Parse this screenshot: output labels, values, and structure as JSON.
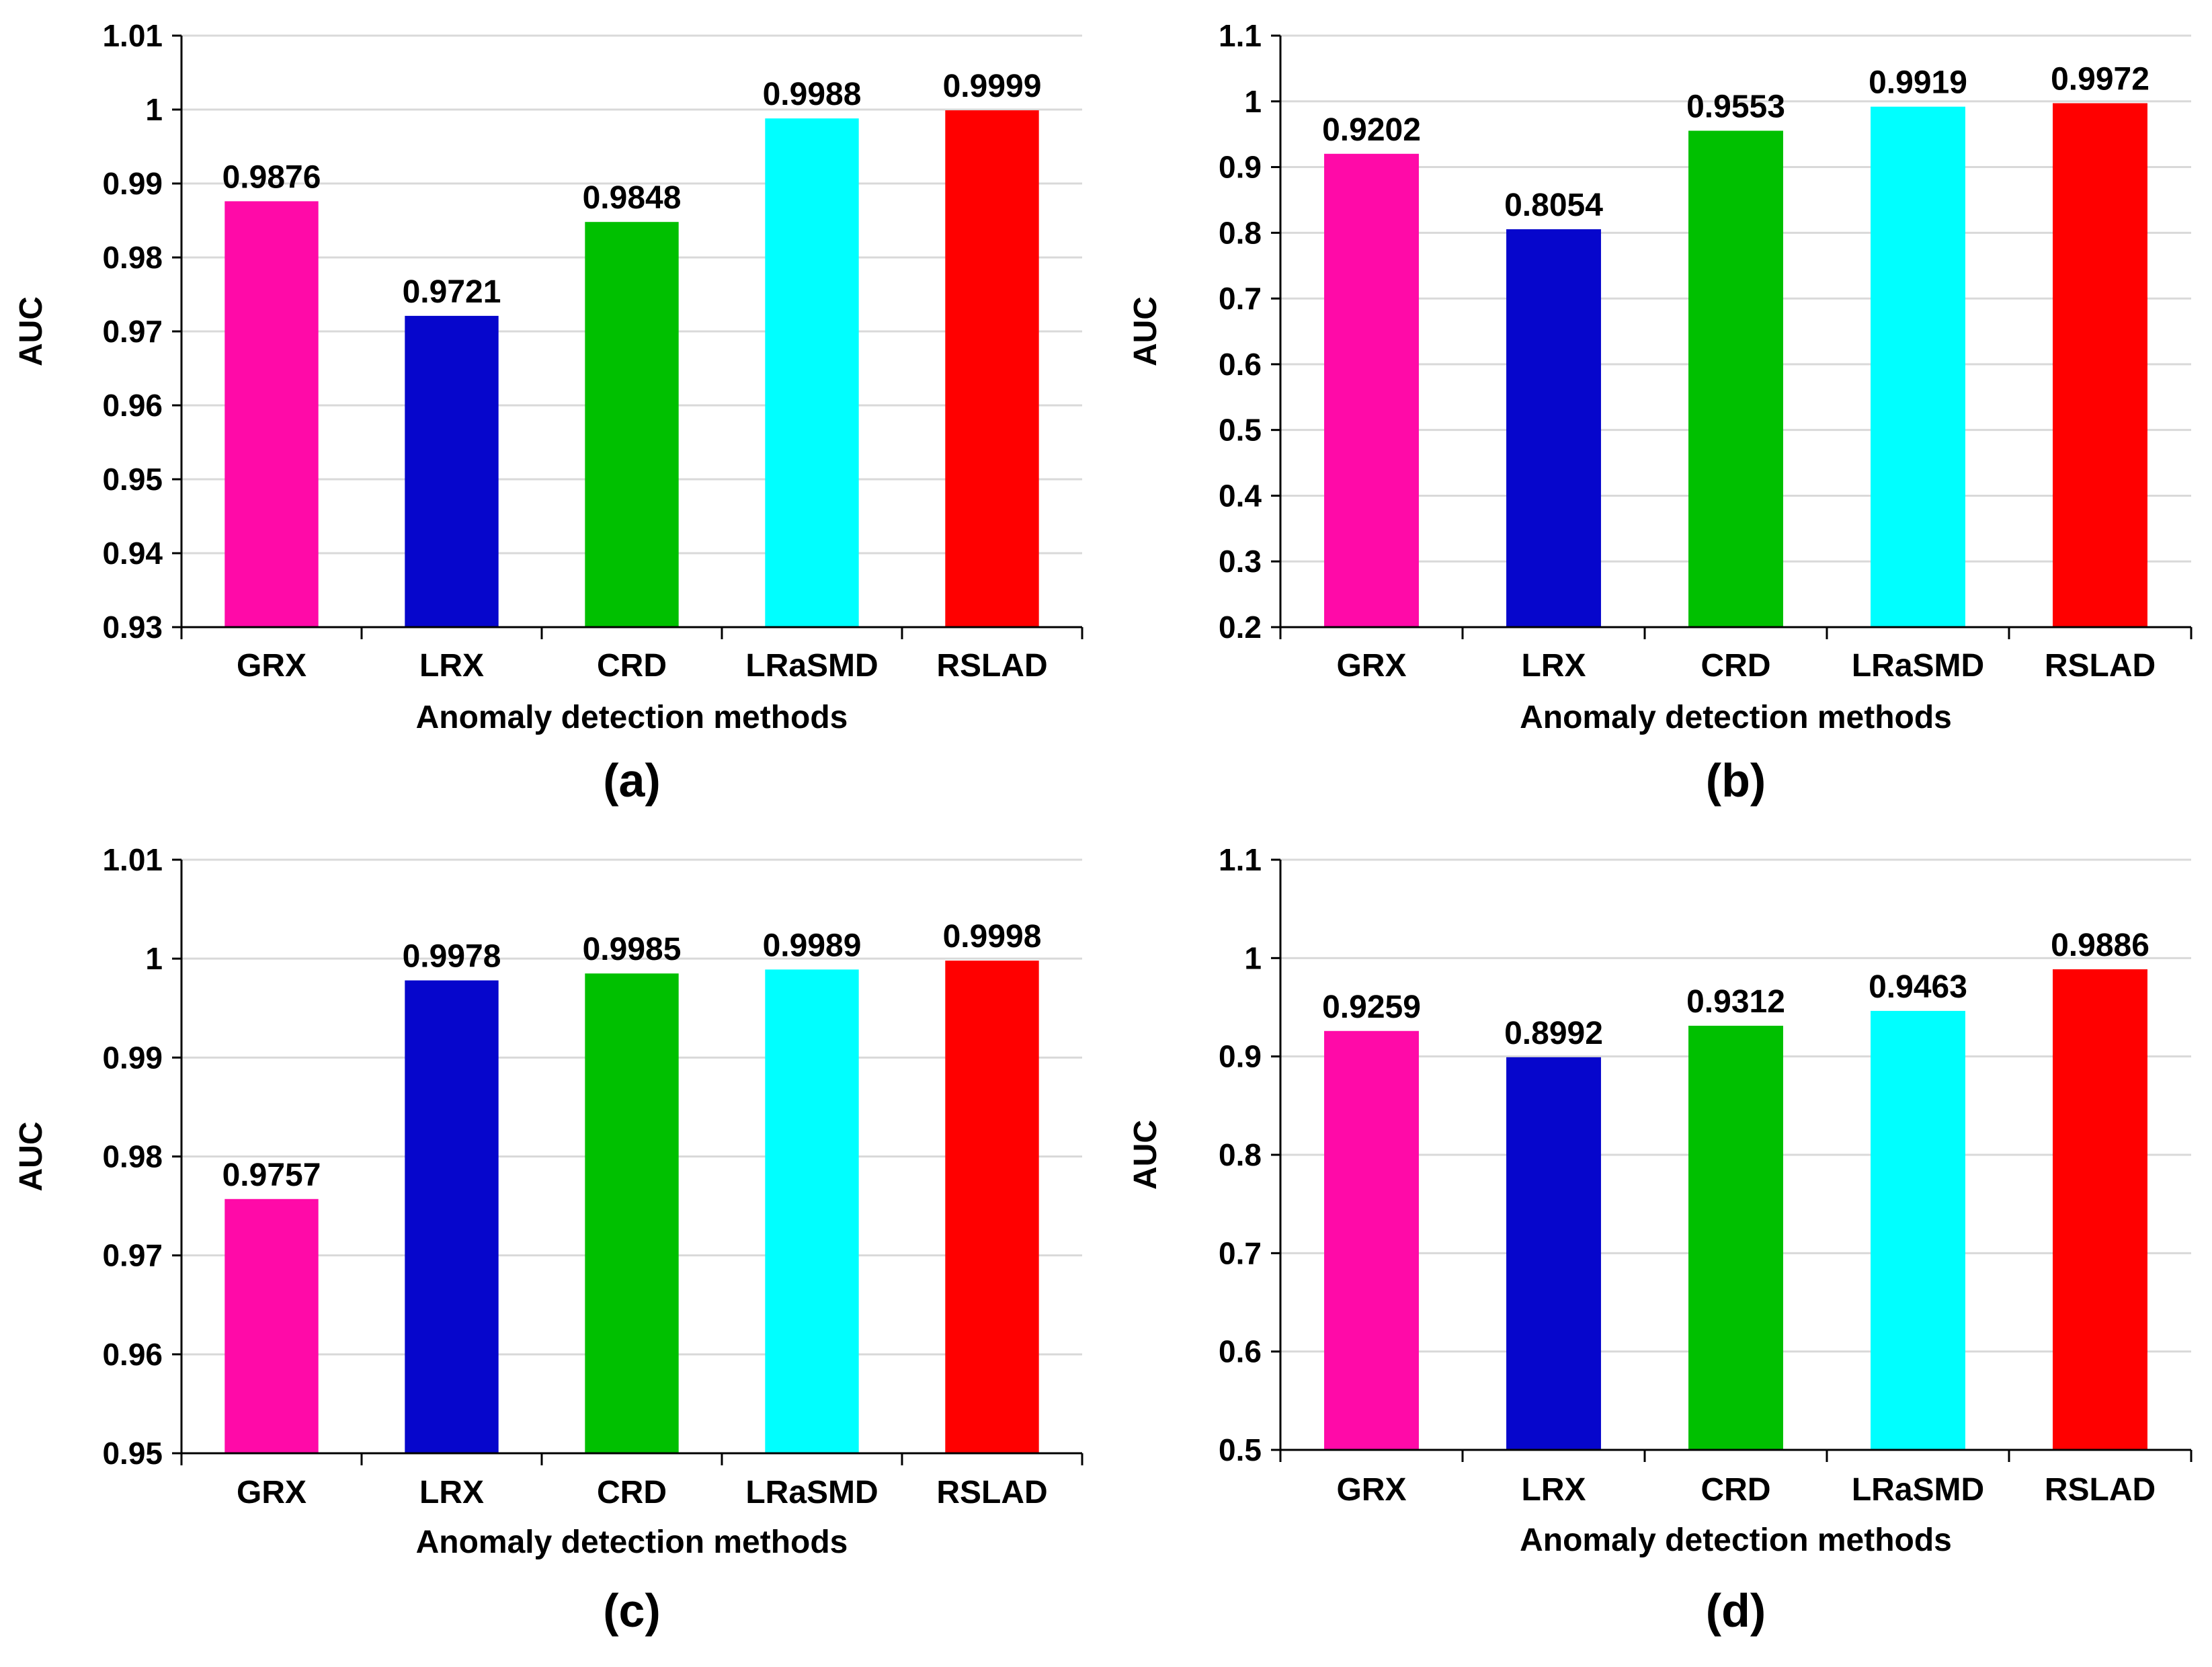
{
  "chart_data": [
    {
      "type": "bar",
      "caption": "(a)",
      "categories": [
        "GRX",
        "LRX",
        "CRD",
        "LRaSMD",
        "RSLAD"
      ],
      "values": [
        0.9876,
        0.9721,
        0.9848,
        0.9988,
        0.9999
      ],
      "value_labels": [
        "0.9876",
        "0.9721",
        "0.9848",
        "0.9988",
        "0.9999"
      ],
      "colors": [
        "#ff0aa8",
        "#0606cc",
        "#00c000",
        "#00ffff",
        "#ff0000"
      ],
      "xlabel": "Anomaly detection methods",
      "ylabel": "AUC",
      "ylim": [
        0.93,
        1.01
      ],
      "yticks": [
        0.93,
        0.94,
        0.95,
        0.96,
        0.97,
        0.98,
        0.99,
        1.0,
        1.01
      ],
      "ytick_labels": [
        "0.93",
        "0.94",
        "0.95",
        "0.96",
        "0.97",
        "0.98",
        "0.99",
        "1",
        "1.01"
      ],
      "grid": true
    },
    {
      "type": "bar",
      "caption": "(b)",
      "categories": [
        "GRX",
        "LRX",
        "CRD",
        "LRaSMD",
        "RSLAD"
      ],
      "values": [
        0.9202,
        0.8054,
        0.9553,
        0.9919,
        0.9972
      ],
      "value_labels": [
        "0.9202",
        "0.8054",
        "0.9553",
        "0.9919",
        "0.9972"
      ],
      "colors": [
        "#ff0aa8",
        "#0606cc",
        "#00c000",
        "#00ffff",
        "#ff0000"
      ],
      "xlabel": "Anomaly detection methods",
      "ylabel": "AUC",
      "ylim": [
        0.2,
        1.1
      ],
      "yticks": [
        0.2,
        0.3,
        0.4,
        0.5,
        0.6,
        0.7,
        0.8,
        0.9,
        1.0,
        1.1
      ],
      "ytick_labels": [
        "0.2",
        "0.3",
        "0.4",
        "0.5",
        "0.6",
        "0.7",
        "0.8",
        "0.9",
        "1",
        "1.1"
      ],
      "grid": true
    },
    {
      "type": "bar",
      "caption": "(c)",
      "categories": [
        "GRX",
        "LRX",
        "CRD",
        "LRaSMD",
        "RSLAD"
      ],
      "values": [
        0.9757,
        0.9978,
        0.9985,
        0.9989,
        0.9998
      ],
      "value_labels": [
        "0.9757",
        "0.9978",
        "0.9985",
        "0.9989",
        "0.9998"
      ],
      "colors": [
        "#ff0aa8",
        "#0606cc",
        "#00c000",
        "#00ffff",
        "#ff0000"
      ],
      "xlabel": "Anomaly detection methods",
      "ylabel": "AUC",
      "ylim": [
        0.95,
        1.01
      ],
      "yticks": [
        0.95,
        0.96,
        0.97,
        0.98,
        0.99,
        1.0,
        1.01
      ],
      "ytick_labels": [
        "0.95",
        "0.96",
        "0.97",
        "0.98",
        "0.99",
        "1",
        "1.01"
      ],
      "grid": true
    },
    {
      "type": "bar",
      "caption": "(d)",
      "categories": [
        "GRX",
        "LRX",
        "CRD",
        "LRaSMD",
        "RSLAD"
      ],
      "values": [
        0.9259,
        0.8992,
        0.9312,
        0.9463,
        0.9886
      ],
      "value_labels": [
        "0.9259",
        "0.8992",
        "0.9312",
        "0.9463",
        "0.9886"
      ],
      "colors": [
        "#ff0aa8",
        "#0606cc",
        "#00c000",
        "#00ffff",
        "#ff0000"
      ],
      "xlabel": "Anomaly detection methods",
      "ylabel": "AUC",
      "ylim": [
        0.5,
        1.1
      ],
      "yticks": [
        0.5,
        0.6,
        0.7,
        0.8,
        0.9,
        1.0,
        1.1
      ],
      "ytick_labels": [
        "0.5",
        "0.6",
        "0.7",
        "0.8",
        "0.9",
        "1",
        "1.1"
      ],
      "grid": true
    }
  ]
}
